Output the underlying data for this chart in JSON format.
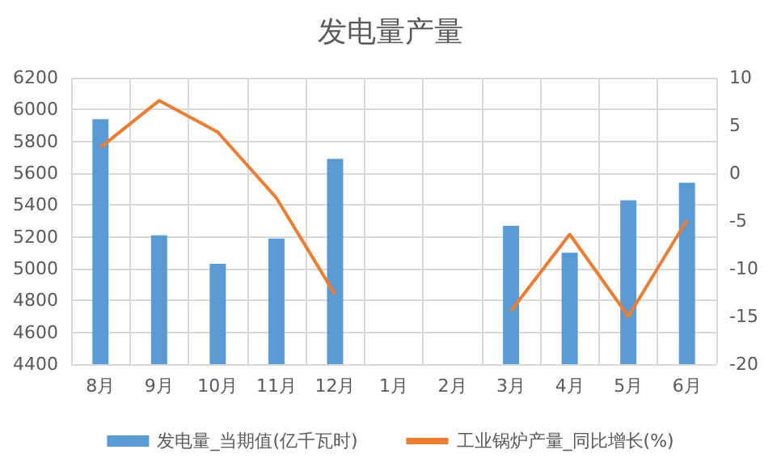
{
  "chart_data": {
    "type": "bar",
    "title": "发电量产量",
    "categories": [
      "8月",
      "9月",
      "10月",
      "11月",
      "12月",
      "1月",
      "2月",
      "3月",
      "4月",
      "5月",
      "6月"
    ],
    "series": [
      {
        "name": "发电量_当期值(亿千瓦时)",
        "color": "#5b9bd5",
        "values": [
          5940,
          5210,
          5030,
          5190,
          5690,
          null,
          null,
          5270,
          5100,
          5430,
          5540
        ]
      },
      {
        "name": "工业锅炉产量_同比增长(%)",
        "type": "line",
        "axis": "y2",
        "color": "#ed7d31",
        "values": [
          2.7,
          7.6,
          4.3,
          -2.6,
          -12.7,
          null,
          null,
          -14.4,
          -6.4,
          -15,
          -4.9
        ]
      }
    ],
    "ylim": [
      4400,
      6200
    ],
    "yticks": [
      4400,
      4600,
      4800,
      5000,
      5200,
      5400,
      5600,
      5800,
      6000,
      6200
    ],
    "y2lim": [
      -20,
      10
    ],
    "y2ticks": [
      -20,
      -15,
      -10,
      -5,
      0,
      5,
      10
    ],
    "grid": true,
    "legend": "bottom",
    "marker": "none"
  }
}
